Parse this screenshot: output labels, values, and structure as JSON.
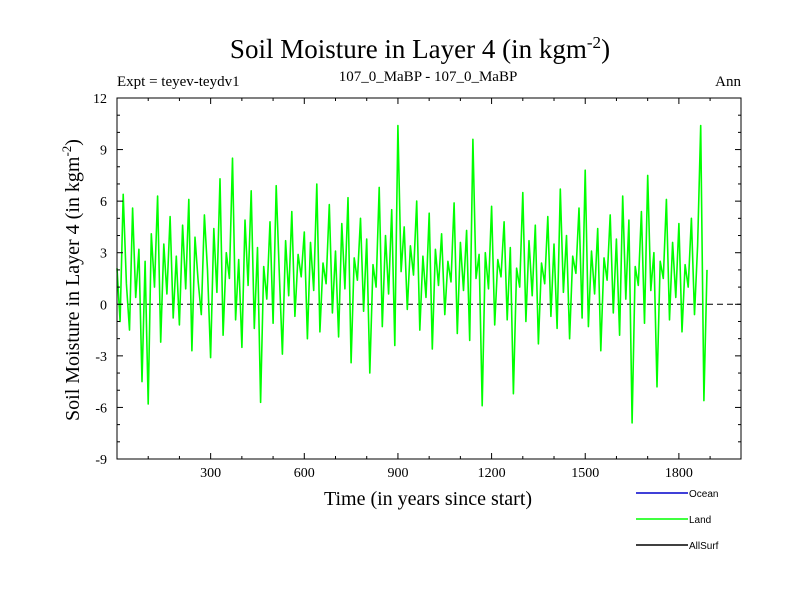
{
  "chart_data": {
    "type": "line",
    "title": "Soil Moisture in Layer 4 (in kgm",
    "title_sup": "-2",
    "title_close": ")",
    "subtitle_left": "Expt = teyev-teydv1",
    "subtitle_center": "107_0_MaBP - 107_0_MaBP",
    "subtitle_right": "Ann",
    "xlabel": "Time (in years since start)",
    "ylabel": "Soil Moisture in Layer 4 (in kgm",
    "ylabel_sup": "-2",
    "ylabel_close": ")",
    "xlim": [
      0,
      1999
    ],
    "ylim": [
      -9,
      12
    ],
    "x_ticks": [
      300,
      600,
      900,
      1200,
      1500,
      1800
    ],
    "x_tick_labels": [
      "300",
      "600",
      "900",
      "1200",
      "1500",
      "1800"
    ],
    "y_ticks": [
      12,
      9,
      6,
      3,
      0,
      -3,
      -6,
      -9
    ],
    "y_tick_labels": [
      "12",
      "9",
      "6",
      "3",
      "0",
      "-3",
      "-6",
      "-9"
    ],
    "zero_line": 0,
    "series": [
      {
        "name": "Ocean",
        "color": "#0000cc",
        "x": [],
        "values": []
      },
      {
        "name": "Land",
        "color": "#00ff00",
        "x_start": 0,
        "x_step": 10,
        "values": [
          2.1,
          -1.0,
          6.4,
          1.2,
          -1.5,
          5.6,
          0.4,
          3.2,
          -4.5,
          2.5,
          -5.8,
          4.1,
          1.0,
          6.3,
          -2.2,
          3.5,
          0.6,
          5.1,
          -0.8,
          2.8,
          -1.2,
          4.6,
          0.9,
          6.1,
          -2.7,
          3.9,
          1.3,
          -0.6,
          5.2,
          2.0,
          -3.1,
          4.4,
          0.7,
          7.3,
          -1.8,
          3.0,
          1.5,
          8.5,
          -0.9,
          2.6,
          -2.5,
          4.9,
          1.1,
          6.6,
          -1.4,
          3.3,
          -5.7,
          2.2,
          0.3,
          4.8,
          -1.1,
          6.9,
          1.8,
          -2.9,
          3.7,
          0.5,
          5.4,
          -0.7,
          2.9,
          1.6,
          4.2,
          -2.0,
          3.6,
          0.8,
          7.0,
          -1.6,
          2.4,
          1.2,
          5.8,
          -0.5,
          3.1,
          -1.9,
          4.7,
          0.9,
          6.2,
          -3.4,
          2.7,
          1.4,
          5.0,
          -0.4,
          3.8,
          -4.0,
          2.3,
          1.0,
          6.8,
          -1.3,
          4.0,
          0.6,
          5.5,
          -2.4,
          10.4,
          1.9,
          4.5,
          -0.3,
          3.4,
          1.7,
          6.0,
          -1.5,
          2.8,
          0.4,
          5.3,
          -2.6,
          3.2,
          1.1,
          4.1,
          -0.6,
          2.5,
          1.3,
          5.9,
          -1.7,
          3.6,
          0.8,
          4.3,
          -2.1,
          9.6,
          1.5,
          2.9,
          -5.9,
          3.0,
          0.9,
          5.7,
          -1.2,
          2.6,
          1.6,
          4.8,
          -0.9,
          3.3,
          -5.2,
          2.1,
          1.0,
          6.5,
          -1.0,
          3.7,
          0.5,
          4.6,
          -2.3,
          2.4,
          1.2,
          5.1,
          -0.7,
          3.5,
          -1.4,
          6.7,
          0.7,
          4.0,
          -2.0,
          2.8,
          1.8,
          5.6,
          -0.8,
          7.8,
          -1.3,
          3.1,
          0.6,
          4.4,
          -2.7,
          2.7,
          1.4,
          5.2,
          -0.5,
          3.8,
          -1.8,
          6.3,
          0.3,
          4.9,
          -6.9,
          2.2,
          1.1,
          5.4,
          -1.1,
          7.5,
          0.8,
          3.0,
          -4.8,
          2.5,
          1.5,
          6.1,
          -0.9,
          3.6,
          0.4,
          4.7,
          -1.6,
          2.3,
          1.0,
          5.0,
          -0.6,
          3.4,
          10.4,
          -5.6,
          2.0
        ]
      },
      {
        "name": "AllSurf",
        "color": "#000000",
        "x": [],
        "values": []
      }
    ]
  }
}
